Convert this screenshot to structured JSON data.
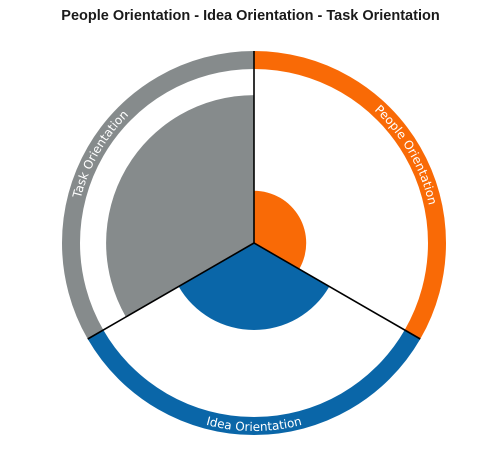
{
  "chart_data": {
    "type": "radar-pie",
    "title": "People Orientation - Idea Orientation - Task Orientation",
    "categories": [
      "People Orientation",
      "Idea Orientation",
      "Task Orientation"
    ],
    "values": [
      0.3,
      0.5,
      0.85
    ],
    "colors": {
      "People Orientation": "#f96a06",
      "Idea Orientation": "#0a66a8",
      "Task Orientation": "#868b8c",
      "divider": "#000000",
      "background": "#ffffff",
      "label_text": "#ffffff"
    }
  }
}
